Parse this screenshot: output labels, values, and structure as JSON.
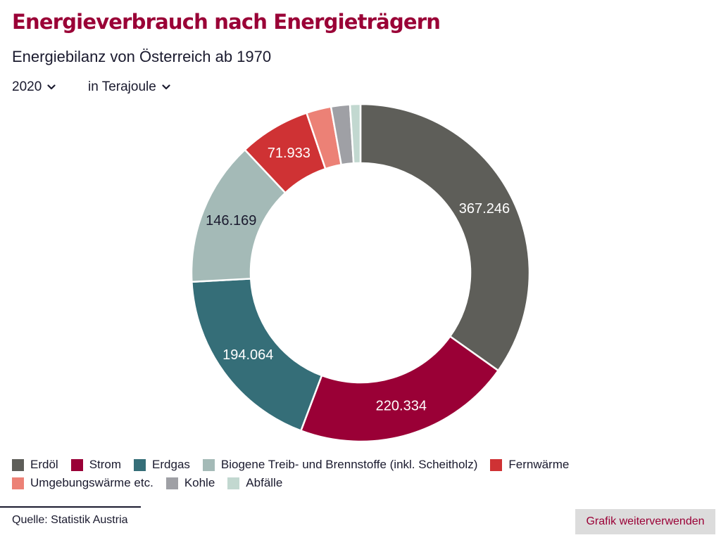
{
  "header": {
    "title": "Energieverbrauch nach Energieträgern",
    "subtitle": "Energiebilanz von Österreich ab 1970"
  },
  "controls": {
    "year": "2020",
    "unit": "in Terajoule"
  },
  "chart_data": {
    "type": "pie",
    "variant": "donut",
    "series": [
      {
        "name": "Erdöl",
        "value": 367246,
        "label": "367.246",
        "color": "#5e5e59",
        "label_color": "#ffffff"
      },
      {
        "name": "Strom",
        "value": 220334,
        "label": "220.334",
        "color": "#9a0036",
        "label_color": "#ffffff"
      },
      {
        "name": "Erdgas",
        "value": 194064,
        "label": "194.064",
        "color": "#356e78",
        "label_color": "#ffffff"
      },
      {
        "name": "Biogene Treib- und Brennstoffe (inkl. Scheitholz)",
        "value": 146169,
        "label": "146.169",
        "color": "#a4bab7",
        "label_color": "#1a1a2e"
      },
      {
        "name": "Fernwärme",
        "value": 71933,
        "label": "71.933",
        "color": "#cf3234",
        "label_color": "#ffffff"
      },
      {
        "name": "Umgebungswärme etc.",
        "value": 25000,
        "label": "",
        "color": "#ec8176",
        "label_color": "#ffffff"
      },
      {
        "name": "Kohle",
        "value": 19000,
        "label": "",
        "color": "#9fa0a5",
        "label_color": "#ffffff"
      },
      {
        "name": "Abfälle",
        "value": 10500,
        "label": "",
        "color": "#c2d8d0",
        "label_color": "#1a1a2e"
      }
    ],
    "legend_position": "bottom"
  },
  "footer": {
    "source": "Quelle: Statistik Austria",
    "reuse_label": "Grafik weiterverwenden"
  }
}
